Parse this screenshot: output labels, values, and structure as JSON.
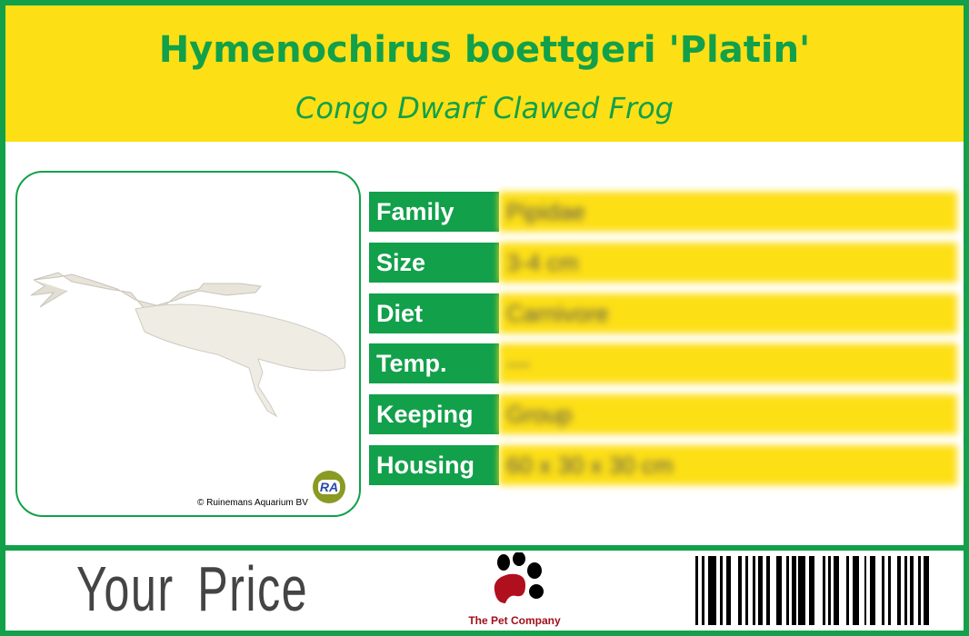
{
  "header": {
    "title": "Hymenochirus boettgeri 'Platin'",
    "subtitle": "Congo Dwarf Clawed Frog"
  },
  "photo": {
    "credit": "© Ruinemans Aquarium BV",
    "logo_text": "RA"
  },
  "details": [
    {
      "label": "Family",
      "value": "Pipidae"
    },
    {
      "label": "Size",
      "value": "3-4 cm"
    },
    {
      "label": "Diet",
      "value": "Carnivore"
    },
    {
      "label": "Temp.",
      "value": "---"
    },
    {
      "label": "Keeping",
      "value": "Group"
    },
    {
      "label": "Housing",
      "value": "60 x 30 x 30 cm"
    }
  ],
  "footer": {
    "price_label": "Your Price",
    "brand": "The Pet Company"
  },
  "colors": {
    "green": "#12a04a",
    "yellow": "#fddf16",
    "brand_red": "#a0101a"
  }
}
